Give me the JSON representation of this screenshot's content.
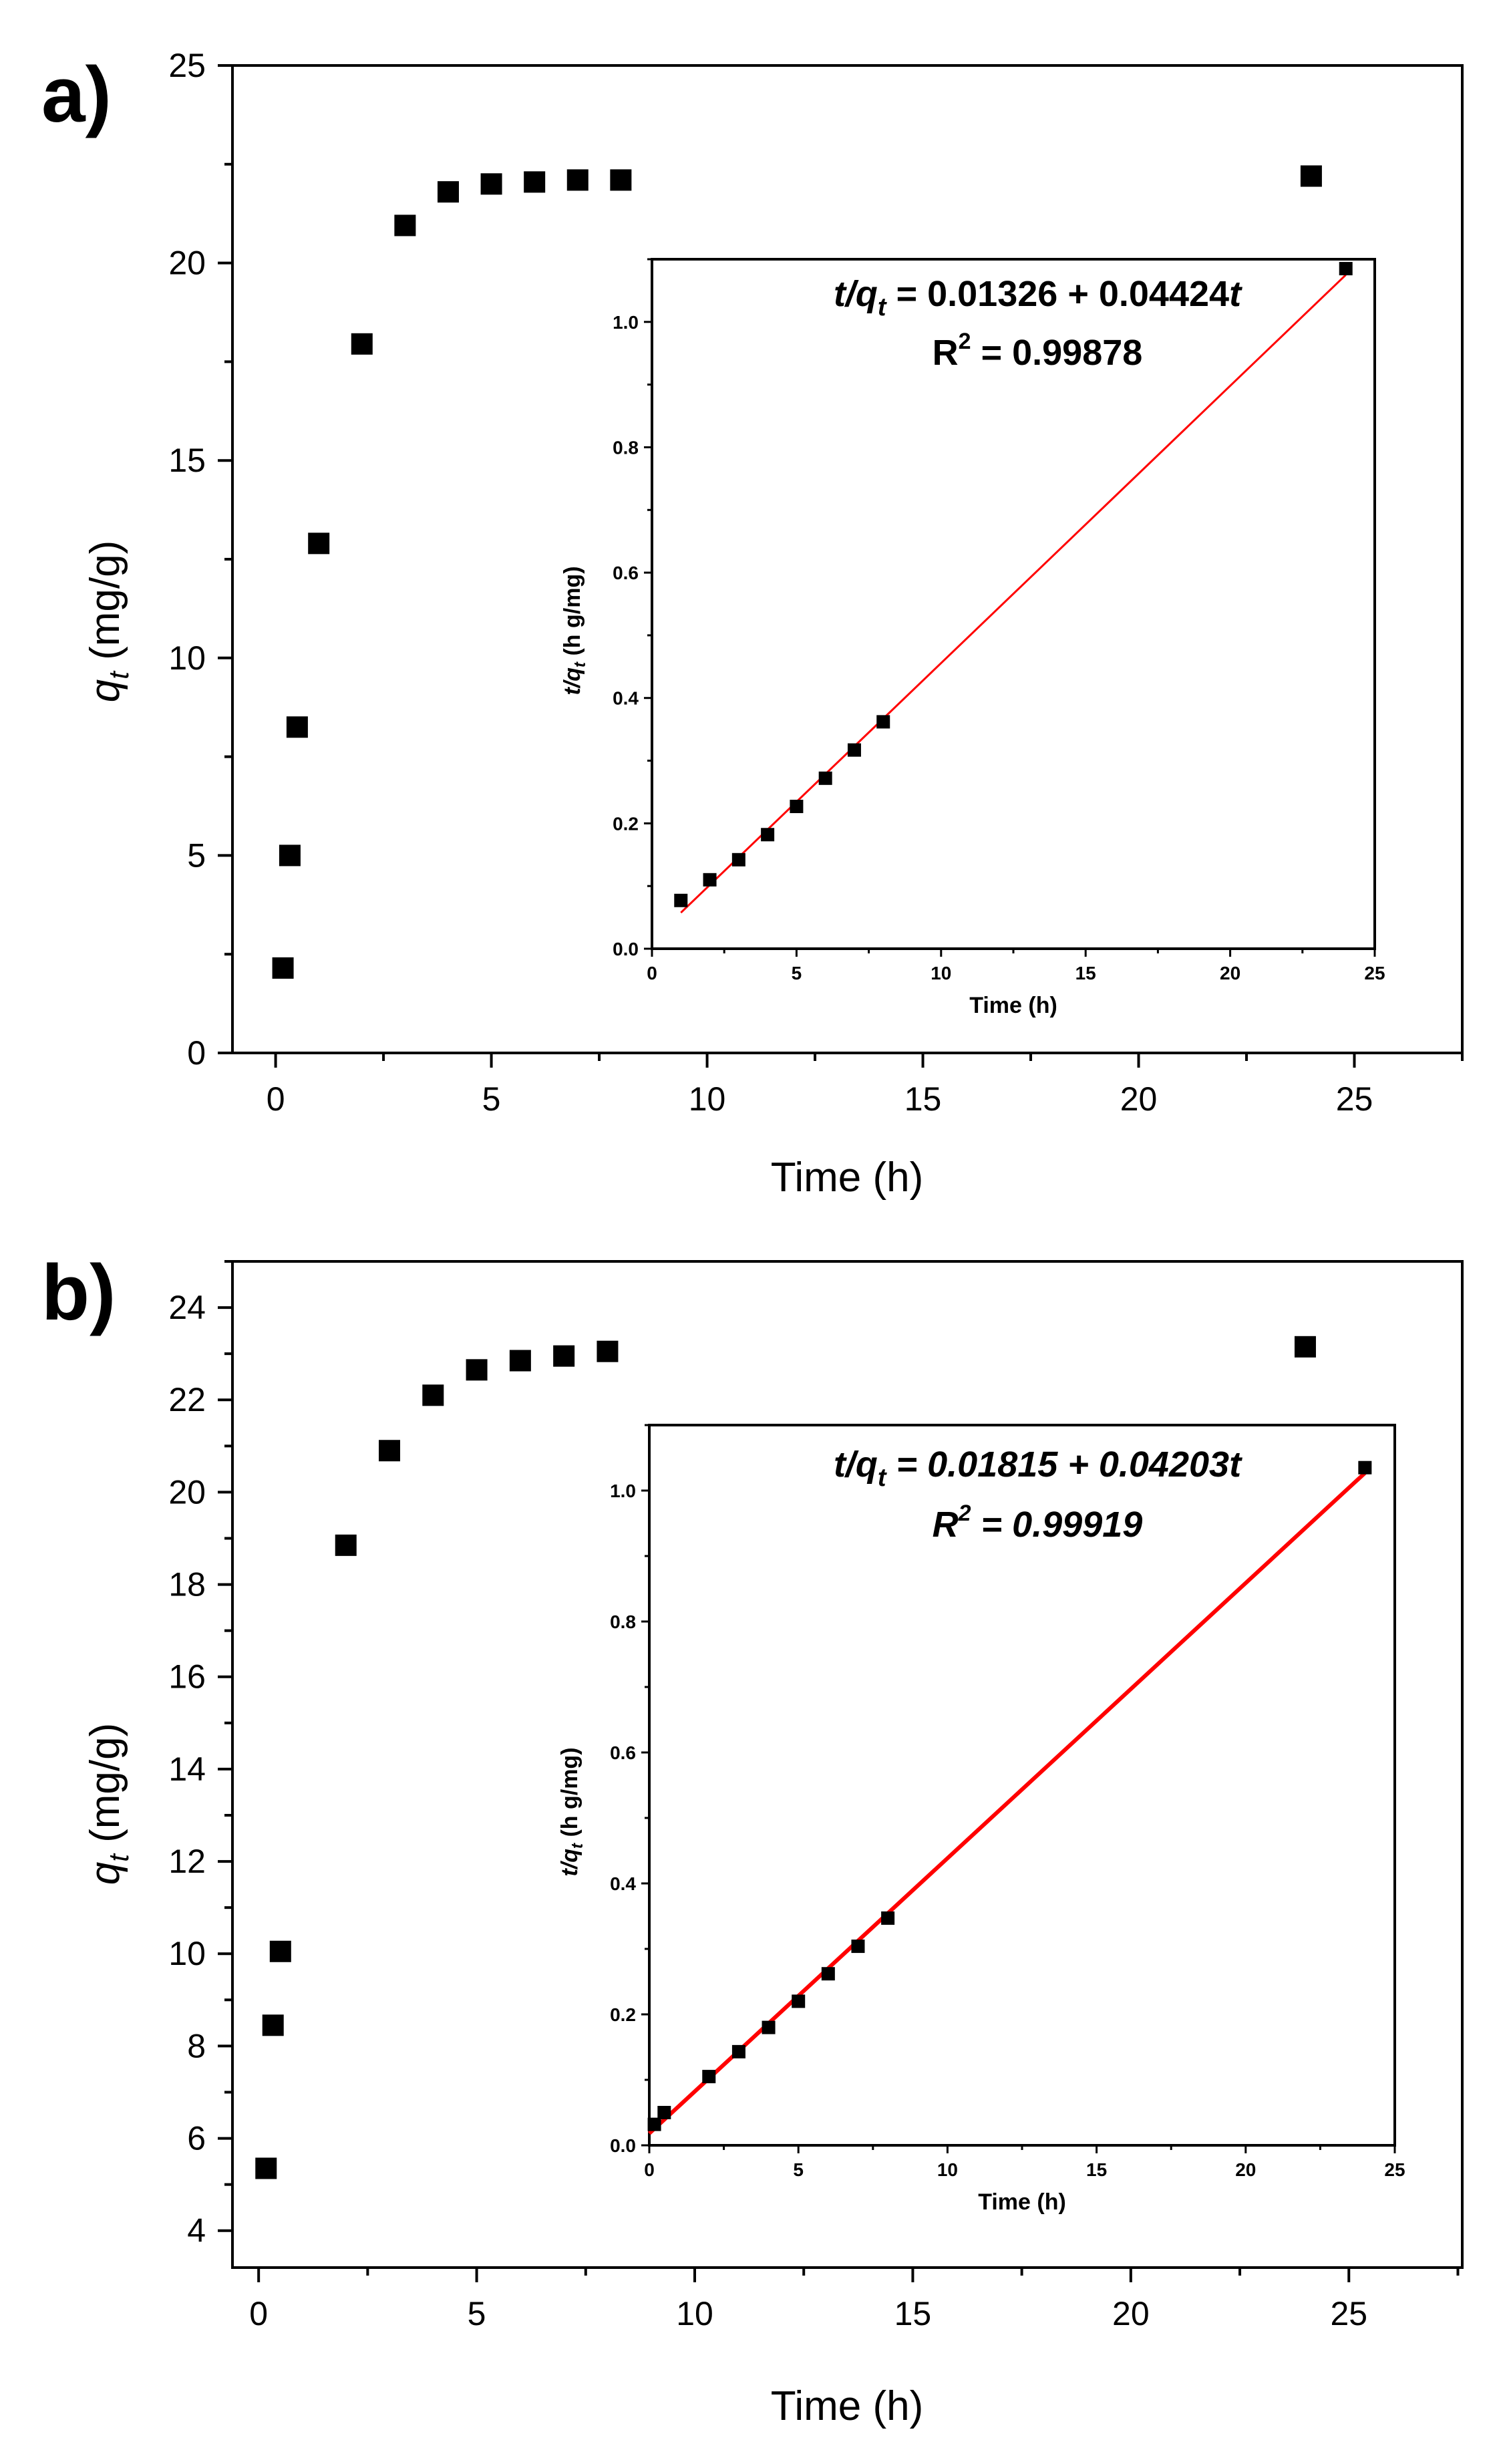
{
  "chart_data": [
    {
      "type": "scatter",
      "panel": "a)",
      "xlabel": "Time (h)",
      "ylabel_main": "q",
      "ylabel_sub": "t",
      "ylabel_unit": "(mg/g)",
      "xlim": [
        -1,
        27.5
      ],
      "ylim": [
        0,
        25
      ],
      "xticks": [
        0,
        5,
        10,
        15,
        20,
        25
      ],
      "yticks": [
        0,
        5,
        10,
        15,
        20,
        25
      ],
      "series": [
        {
          "name": "qt",
          "color": "#000000",
          "x": [
            0.17,
            0.33,
            0.5,
            1,
            2,
            3,
            4,
            5,
            6,
            7,
            8,
            24
          ],
          "y": [
            2.15,
            5.0,
            8.25,
            12.9,
            17.95,
            20.95,
            21.8,
            22.0,
            22.05,
            22.1,
            22.1,
            22.2
          ]
        }
      ],
      "inset": {
        "type": "scatter",
        "xlabel": "Time (h)",
        "ylabel_main": "t/q",
        "ylabel_sub": "t",
        "ylabel_unit": "(h g/mg)",
        "xlim": [
          0,
          25
        ],
        "ylim": [
          0,
          1.1
        ],
        "xticks": [
          0,
          5,
          10,
          15,
          20,
          25
        ],
        "yticks": [
          0.0,
          0.2,
          0.4,
          0.6,
          0.8,
          1.0
        ],
        "ytick_labels": [
          "0.0",
          "0.2",
          "0.4",
          "0.6",
          "0.8",
          "1.0"
        ],
        "x": [
          1,
          2,
          3,
          4,
          5,
          6,
          7,
          8,
          24
        ],
        "y": [
          0.077,
          0.11,
          0.142,
          0.182,
          0.227,
          0.272,
          0.317,
          0.362,
          1.085
        ],
        "fit": {
          "intercept": 0.01326,
          "slope": 0.04424,
          "x_range": [
            1,
            24
          ],
          "color": "#ff0000"
        },
        "equation": {
          "lhs_main": "t/q",
          "lhs_sub": "t",
          "rhs_prefix": "= 0.01326 + 0.04424",
          "rhs_var": "t"
        },
        "r2": {
          "label": "R",
          "sup": "2",
          "value": "= 0.99878"
        }
      }
    },
    {
      "type": "scatter",
      "panel": "b)",
      "xlabel": "Time (h)",
      "ylabel_main": "q",
      "ylabel_sub": "t",
      "ylabel_unit": "(mg/g)",
      "xlim": [
        -0.6,
        27.6
      ],
      "ylim": [
        3.2,
        25.0
      ],
      "xticks": [
        0,
        5,
        10,
        15,
        20,
        25
      ],
      "yticks": [
        4,
        6,
        8,
        10,
        12,
        14,
        16,
        18,
        20,
        22,
        24
      ],
      "series": [
        {
          "name": "qt",
          "color": "#000000",
          "x": [
            0.17,
            0.33,
            0.5,
            2,
            3,
            4,
            5,
            6,
            7,
            8,
            24
          ],
          "y": [
            5.35,
            8.45,
            10.05,
            18.85,
            20.9,
            22.1,
            22.65,
            22.85,
            22.95,
            23.05,
            23.15
          ]
        }
      ],
      "inset": {
        "type": "scatter",
        "xlabel": "Time (h)",
        "ylabel_main": "t/q",
        "ylabel_sub": "t",
        "ylabel_unit": "(h g/mg)",
        "xlim": [
          0,
          25
        ],
        "ylim": [
          0,
          1.1
        ],
        "xticks": [
          0,
          5,
          10,
          15,
          20,
          25
        ],
        "yticks": [
          0.0,
          0.2,
          0.4,
          0.6,
          0.8,
          1.0
        ],
        "ytick_labels": [
          "0.0",
          "0.2",
          "0.4",
          "0.6",
          "0.8",
          "1.0"
        ],
        "x": [
          0.17,
          0.5,
          2,
          3,
          4,
          5,
          6,
          7,
          8,
          24
        ],
        "y": [
          0.032,
          0.05,
          0.105,
          0.143,
          0.18,
          0.22,
          0.262,
          0.304,
          0.347,
          1.035
        ],
        "fit": {
          "intercept": 0.01815,
          "slope": 0.04203,
          "x_range": [
            0,
            24
          ],
          "color": "#ff0000"
        },
        "equation": {
          "lhs_main": "t/q",
          "lhs_sub": "t",
          "rhs_prefix": "= 0.01815 + 0.04203",
          "rhs_var": "t"
        },
        "r2": {
          "label": "R",
          "sup": "2",
          "value": "= 0.99919"
        }
      }
    }
  ]
}
